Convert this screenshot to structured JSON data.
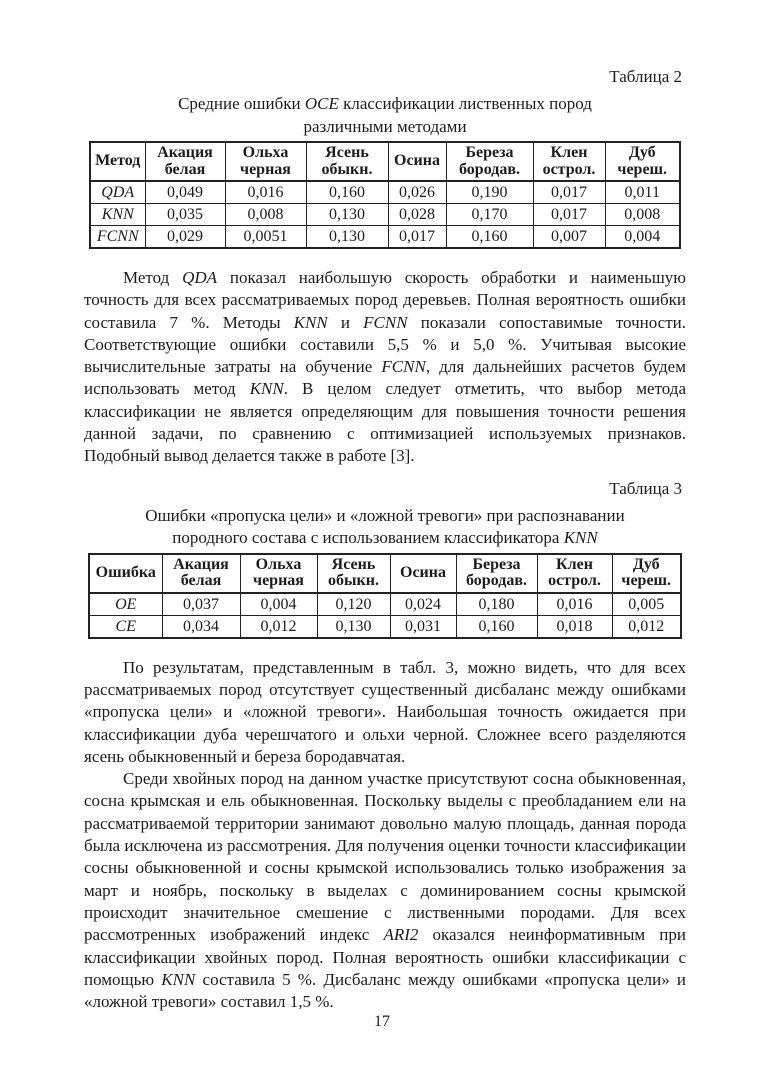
{
  "page_number": "17",
  "table2": {
    "caption": "Таблица 2",
    "title_lines": {
      "line1": [
        {
          "t": "Средние ошибки "
        },
        {
          "t": "OCE",
          "i": true
        },
        {
          "t": " классификации лиственных пород"
        }
      ],
      "line2": [
        {
          "t": "различными методами"
        }
      ]
    },
    "columns": [
      "Метод",
      "Акация белая",
      "Ольха черная",
      "Ясень обыкн.",
      "Осина",
      "Береза бородав.",
      "Клен острол.",
      "Дуб череш."
    ],
    "rows": [
      {
        "method": "QDA",
        "values": [
          "0,049",
          "0,016",
          "0,160",
          "0,026",
          "0,190",
          "0,017",
          "0,011"
        ]
      },
      {
        "method": "KNN",
        "values": [
          "0,035",
          "0,008",
          "0,130",
          "0,028",
          "0,170",
          "0,017",
          "0,008"
        ]
      },
      {
        "method": "FCNN",
        "values": [
          "0,029",
          "0,0051",
          "0,130",
          "0,017",
          "0,160",
          "0,007",
          "0,004"
        ]
      }
    ]
  },
  "table3": {
    "caption": "Таблица 3",
    "title_lines": {
      "line1": [
        {
          "t": "Ошибки «пропуска цели» и «ложной тревоги» при распознавании"
        }
      ],
      "line2": [
        {
          "t": "породного состава с использованием классификатора "
        },
        {
          "t": "KNN",
          "i": true
        }
      ]
    },
    "columns": [
      "Ошибка",
      "Акация белая",
      "Ольха черная",
      "Ясень обыкн.",
      "Осина",
      "Береза бородав.",
      "Клен острол.",
      "Дуб череш."
    ],
    "rows": [
      {
        "method": "OE",
        "values": [
          "0,037",
          "0,004",
          "0,120",
          "0,024",
          "0,180",
          "0,016",
          "0,005"
        ]
      },
      {
        "method": "CE",
        "values": [
          "0,034",
          "0,012",
          "0,130",
          "0,031",
          "0,160",
          "0,018",
          "0,012"
        ]
      }
    ]
  },
  "paragraphs": {
    "p1": [
      {
        "t": "Метод "
      },
      {
        "t": "QDA",
        "i": true
      },
      {
        "t": " показал наибольшую скорость обработки и наименьшую точность для всех рассматриваемых пород деревьев. Полная вероятность ошибки составила 7 %. Методы "
      },
      {
        "t": "KNN",
        "i": true
      },
      {
        "t": " и "
      },
      {
        "t": "FCNN",
        "i": true
      },
      {
        "t": " показали сопоставимые точности. Соответствующие ошибки составили 5,5 % и 5,0 %. Учитывая высокие вычислительные затраты на обучение "
      },
      {
        "t": "FCNN",
        "i": true
      },
      {
        "t": ", для дальнейших расчетов будем использовать метод "
      },
      {
        "t": "KNN",
        "i": true
      },
      {
        "t": ". В целом следует отметить, что выбор метода классификации не является определяющим для повышения точности решения данной задачи, по сравнению с оптимизацией используемых признаков. Подобный вывод делается также в работе [3]."
      }
    ],
    "p2": [
      {
        "t": "По результатам, представленным в табл. 3, можно видеть, что для всех рассматриваемых пород отсутствует существенный дисбаланс между ошибками «пропуска цели» и «ложной тревоги». Наибольшая точность ожидается при классификации дуба черешчатого и ольхи черной. Сложнее всего разделяются ясень обыкновенный и береза бородавчатая."
      }
    ],
    "p3": [
      {
        "t": "Среди хвойных пород на данном участке присутствуют сосна обыкновенная, сосна крымская и ель обыкновенная. Поскольку выделы с преобладанием ели на рассматриваемой территории занимают довольно малую площадь, данная порода была исключена из рассмотрения. Для получения оценки точности классификации сосны обыкновенной и сосны крымской использовались только изображения за март и ноябрь, поскольку в выделах с доминированием сосны крымской происходит значительное смешение с лиственными породами. Для всех рассмотренных изображений индекс "
      },
      {
        "t": "ARI2",
        "i": true
      },
      {
        "t": " оказался неинформативным при классификации хвойных пород. Полная вероятность ошибки классификации с помощью "
      },
      {
        "t": "KNN",
        "i": true
      },
      {
        "t": " составила 5 %. Дисбаланс между ошибками «пропуска цели» и «ложной тревоги» составил 1,5 %."
      }
    ]
  }
}
